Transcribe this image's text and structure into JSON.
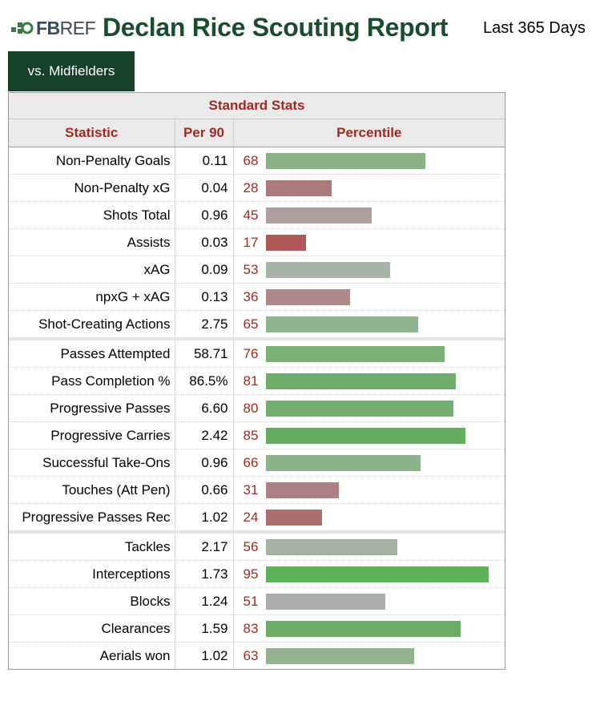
{
  "header": {
    "logo_bold": "FB",
    "logo_light": "REF",
    "title": "Declan Rice Scouting Report",
    "period": "Last 365 Days"
  },
  "tab": {
    "label": "vs. Midfielders"
  },
  "table": {
    "section_title": "Standard Stats",
    "columns": [
      "Statistic",
      "Per 90",
      "Percentile"
    ],
    "groups": [
      [
        {
          "stat": "Non-Penalty Goals",
          "per90": "0.11",
          "percentile": "68",
          "color": "#8ab187"
        },
        {
          "stat": "Non-Penalty xG",
          "per90": "0.04",
          "percentile": "28",
          "color": "#ad7a7a"
        },
        {
          "stat": "Shots Total",
          "per90": "0.96",
          "percentile": "45",
          "color": "#b09f9f"
        },
        {
          "stat": "Assists",
          "per90": "0.03",
          "percentile": "17",
          "color": "#b05757"
        },
        {
          "stat": "xAG",
          "per90": "0.09",
          "percentile": "53",
          "color": "#a7b3a6"
        },
        {
          "stat": "npxG + xAG",
          "per90": "0.13",
          "percentile": "36",
          "color": "#ad8888"
        },
        {
          "stat": "Shot-Creating Actions",
          "per90": "2.75",
          "percentile": "65",
          "color": "#8fb38c"
        }
      ],
      [
        {
          "stat": "Passes Attempted",
          "per90": "58.71",
          "percentile": "76",
          "color": "#7bb077"
        },
        {
          "stat": "Pass Completion %",
          "per90": "86.5%",
          "percentile": "81",
          "color": "#70ad6c"
        },
        {
          "stat": "Progressive Passes",
          "per90": "6.60",
          "percentile": "80",
          "color": "#72ae6e"
        },
        {
          "stat": "Progressive Carries",
          "per90": "2.42",
          "percentile": "85",
          "color": "#66ac61"
        },
        {
          "stat": "Successful Take-Ons",
          "per90": "0.96",
          "percentile": "66",
          "color": "#8cb289"
        },
        {
          "stat": "Touches (Att Pen)",
          "per90": "0.66",
          "percentile": "31",
          "color": "#ad8181"
        },
        {
          "stat": "Progressive Passes Rec",
          "per90": "1.02",
          "percentile": "24",
          "color": "#ac6f6f"
        }
      ],
      [
        {
          "stat": "Tackles",
          "per90": "2.17",
          "percentile": "56",
          "color": "#a2b3a1"
        },
        {
          "stat": "Interceptions",
          "per90": "1.73",
          "percentile": "95",
          "color": "#5cb257"
        },
        {
          "stat": "Blocks",
          "per90": "1.24",
          "percentile": "51",
          "color": "#aaaeaa"
        },
        {
          "stat": "Clearances",
          "per90": "1.59",
          "percentile": "83",
          "color": "#6bad66"
        },
        {
          "stat": "Aerials won",
          "per90": "1.02",
          "percentile": "63",
          "color": "#93b290"
        }
      ]
    ]
  }
}
